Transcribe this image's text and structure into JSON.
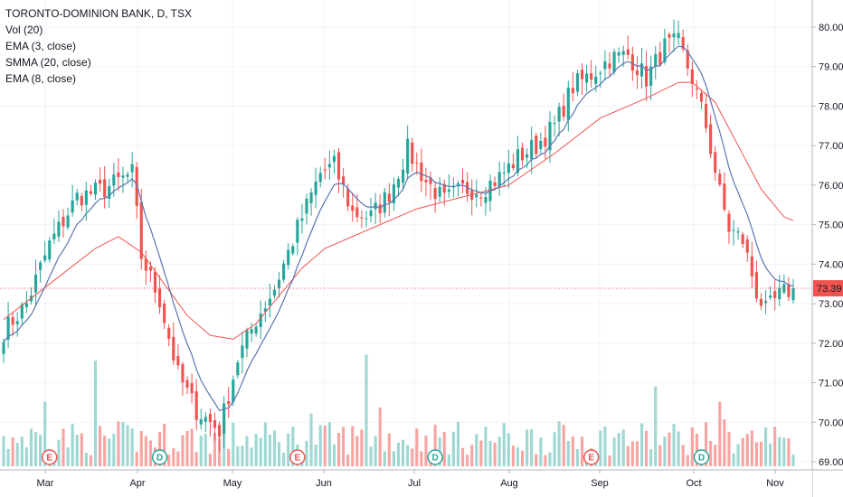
{
  "legend": {
    "title": "TORONTO-DOMINION BANK, D, TSX",
    "indicators": [
      "Vol (20)",
      "EMA (3, close)",
      "SMMA (20, close)",
      "EMA (8, close)"
    ]
  },
  "colors": {
    "up": "#26a69a",
    "down": "#ef5350",
    "vol_up": "#9fd8d3",
    "vol_down": "#f6a5a3",
    "ema_line": "#5b76b0",
    "smma_line": "#ef5350",
    "last_price_line": "#ef5350"
  },
  "chart_data": {
    "type": "candlestick",
    "ylim": [
      68.9,
      80.2
    ],
    "y_ticks": [
      "69.00",
      "70.00",
      "71.00",
      "72.00",
      "73.00",
      "74.00",
      "75.00",
      "76.00",
      "77.00",
      "78.00",
      "79.00",
      "80.00"
    ],
    "x_labels": [
      "Mar",
      "Apr",
      "May",
      "Jun",
      "Jul",
      "Aug",
      "Sep",
      "Oct",
      "Nov"
    ],
    "last_price": "73.39",
    "anchors": [
      {
        "d": 0,
        "c": 72.3
      },
      {
        "d": 5,
        "c": 73.0
      },
      {
        "d": 10,
        "c": 74.5
      },
      {
        "d": 16,
        "c": 75.7
      },
      {
        "d": 22,
        "c": 75.9
      },
      {
        "d": 28,
        "c": 76.3
      },
      {
        "d": 30,
        "c": 74.2
      },
      {
        "d": 34,
        "c": 73.1
      },
      {
        "d": 38,
        "c": 71.2
      },
      {
        "d": 42,
        "c": 70.3
      },
      {
        "d": 47,
        "c": 69.8
      },
      {
        "d": 51,
        "c": 71.6
      },
      {
        "d": 55,
        "c": 72.6
      },
      {
        "d": 59,
        "c": 73.4
      },
      {
        "d": 64,
        "c": 74.9
      },
      {
        "d": 69,
        "c": 76.3
      },
      {
        "d": 72,
        "c": 76.5
      },
      {
        "d": 76,
        "c": 75.3
      },
      {
        "d": 80,
        "c": 75.2
      },
      {
        "d": 84,
        "c": 75.8
      },
      {
        "d": 88,
        "c": 76.9
      },
      {
        "d": 92,
        "c": 76.1
      },
      {
        "d": 96,
        "c": 75.6
      },
      {
        "d": 100,
        "c": 75.9
      },
      {
        "d": 104,
        "c": 75.9
      },
      {
        "d": 108,
        "c": 76.2
      },
      {
        "d": 112,
        "c": 76.7
      },
      {
        "d": 116,
        "c": 77.0
      },
      {
        "d": 120,
        "c": 77.5
      },
      {
        "d": 124,
        "c": 78.5
      },
      {
        "d": 128,
        "c": 78.8
      },
      {
        "d": 132,
        "c": 79.2
      },
      {
        "d": 136,
        "c": 79.3
      },
      {
        "d": 140,
        "c": 78.7
      },
      {
        "d": 144,
        "c": 79.5
      },
      {
        "d": 147,
        "c": 79.6
      },
      {
        "d": 150,
        "c": 78.7
      },
      {
        "d": 153,
        "c": 77.5
      },
      {
        "d": 156,
        "c": 75.8
      },
      {
        "d": 158,
        "c": 74.9
      },
      {
        "d": 161,
        "c": 74.6
      },
      {
        "d": 164,
        "c": 73.3
      },
      {
        "d": 166,
        "c": 72.8
      },
      {
        "d": 169,
        "c": 73.2
      },
      {
        "d": 172,
        "c": 73.4
      }
    ],
    "smma_points": [
      {
        "d": 0,
        "v": 72.6
      },
      {
        "d": 10,
        "v": 73.5
      },
      {
        "d": 20,
        "v": 74.4
      },
      {
        "d": 25,
        "v": 74.7
      },
      {
        "d": 30,
        "v": 74.3
      },
      {
        "d": 35,
        "v": 73.5
      },
      {
        "d": 40,
        "v": 72.7
      },
      {
        "d": 45,
        "v": 72.2
      },
      {
        "d": 50,
        "v": 72.1
      },
      {
        "d": 55,
        "v": 72.5
      },
      {
        "d": 60,
        "v": 73.2
      },
      {
        "d": 65,
        "v": 73.9
      },
      {
        "d": 70,
        "v": 74.4
      },
      {
        "d": 80,
        "v": 74.9
      },
      {
        "d": 90,
        "v": 75.4
      },
      {
        "d": 100,
        "v": 75.7
      },
      {
        "d": 110,
        "v": 76.0
      },
      {
        "d": 120,
        "v": 76.8
      },
      {
        "d": 130,
        "v": 77.7
      },
      {
        "d": 140,
        "v": 78.2
      },
      {
        "d": 147,
        "v": 78.6
      },
      {
        "d": 150,
        "v": 78.6
      },
      {
        "d": 155,
        "v": 78.1
      },
      {
        "d": 160,
        "v": 77.0
      },
      {
        "d": 165,
        "v": 75.9
      },
      {
        "d": 170,
        "v": 75.2
      },
      {
        "d": 172,
        "v": 75.1
      }
    ],
    "event_badges": [
      {
        "type": "E",
        "d": 10
      },
      {
        "type": "D",
        "d": 34
      },
      {
        "type": "E",
        "d": 64
      },
      {
        "type": "D",
        "d": 94
      },
      {
        "type": "E",
        "d": 128
      },
      {
        "type": "D",
        "d": 152
      }
    ],
    "volume_spikes": [
      {
        "d": 20,
        "h": 0.9
      },
      {
        "d": 9,
        "h": 0.55
      },
      {
        "d": 79,
        "h": 0.95
      },
      {
        "d": 142,
        "h": 0.68
      },
      {
        "d": 156,
        "h": 0.55
      },
      {
        "d": 157,
        "h": 0.4
      },
      {
        "d": 67,
        "h": 0.45
      },
      {
        "d": 82,
        "h": 0.5
      }
    ]
  }
}
